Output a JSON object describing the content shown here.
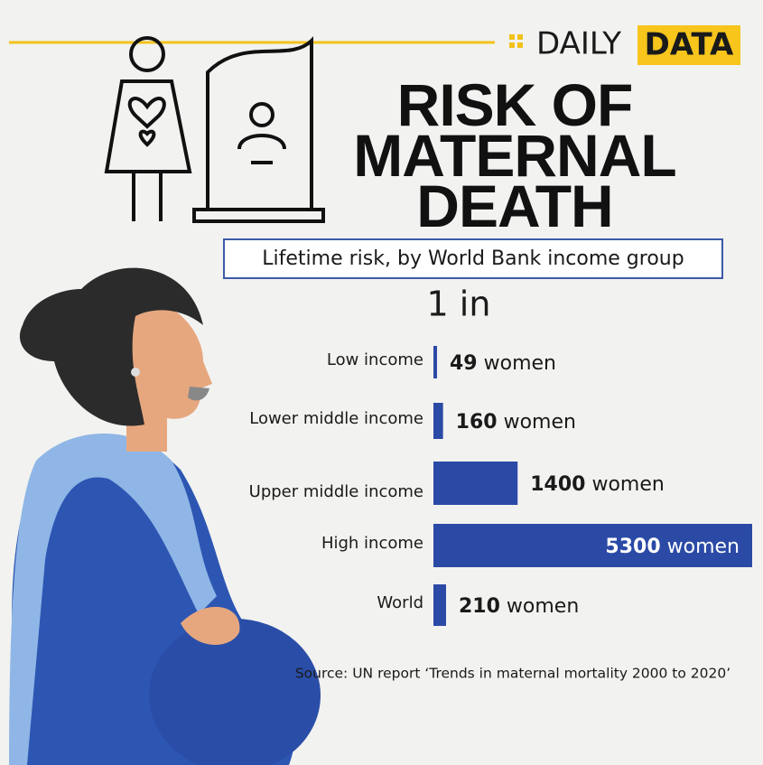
{
  "header": {
    "brand": "DAILY",
    "brand_highlight": "DATA"
  },
  "chart_data": {
    "type": "bar",
    "orientation": "horizontal",
    "title": "RISK OF MATERNAL DEATH",
    "subtitle": "Lifetime risk, by World Bank income group",
    "unit_label": "1 in",
    "categories": [
      "Low income",
      "Lower middle income",
      "Upper middle income",
      "High income",
      "World"
    ],
    "values": [
      49,
      160,
      1400,
      5300,
      210
    ],
    "value_labels": [
      "49 women",
      "160 women",
      "1400 women",
      "5300 women",
      "210 women"
    ],
    "color": "#2b4aa6",
    "xlim": [
      0,
      5300
    ],
    "source": "Source: UN report ‘Trends in maternal mortality 2000 to 2020’"
  }
}
